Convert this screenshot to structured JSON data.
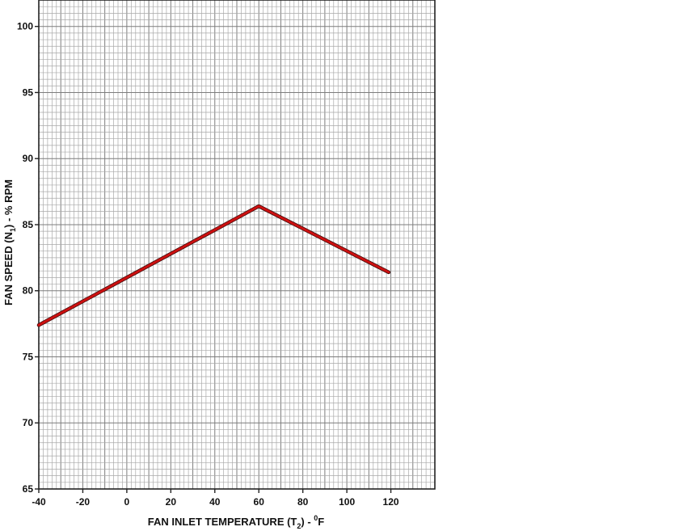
{
  "chart_data": {
    "type": "line",
    "title": "",
    "xlabel": {
      "prefix": "FAN INLET TEMPERATURE (T",
      "subscript": "2",
      "middle": ") - ",
      "superscript": "0",
      "suffix": "F"
    },
    "ylabel": {
      "prefix": "FAN SPEED (N",
      "subscript": "1",
      "suffix": ") - % RPM"
    },
    "xlim": [
      -40,
      140
    ],
    "ylim": [
      65,
      102
    ],
    "x_ticks": [
      -40,
      -20,
      0,
      20,
      40,
      60,
      80,
      100,
      120
    ],
    "x_tick_labels": [
      "-40",
      "-20",
      "0",
      "20",
      "40",
      "60",
      "80",
      "100",
      "120"
    ],
    "y_ticks": [
      65,
      70,
      75,
      80,
      85,
      90,
      95,
      100
    ],
    "y_tick_labels": [
      "65",
      "70",
      "75",
      "80",
      "85",
      "90",
      "95",
      "100"
    ],
    "grid": true,
    "series": [
      {
        "color": "#cc1111",
        "x": [
          -40,
          60,
          119
        ],
        "y": [
          77.4,
          86.4,
          81.4
        ]
      }
    ]
  }
}
